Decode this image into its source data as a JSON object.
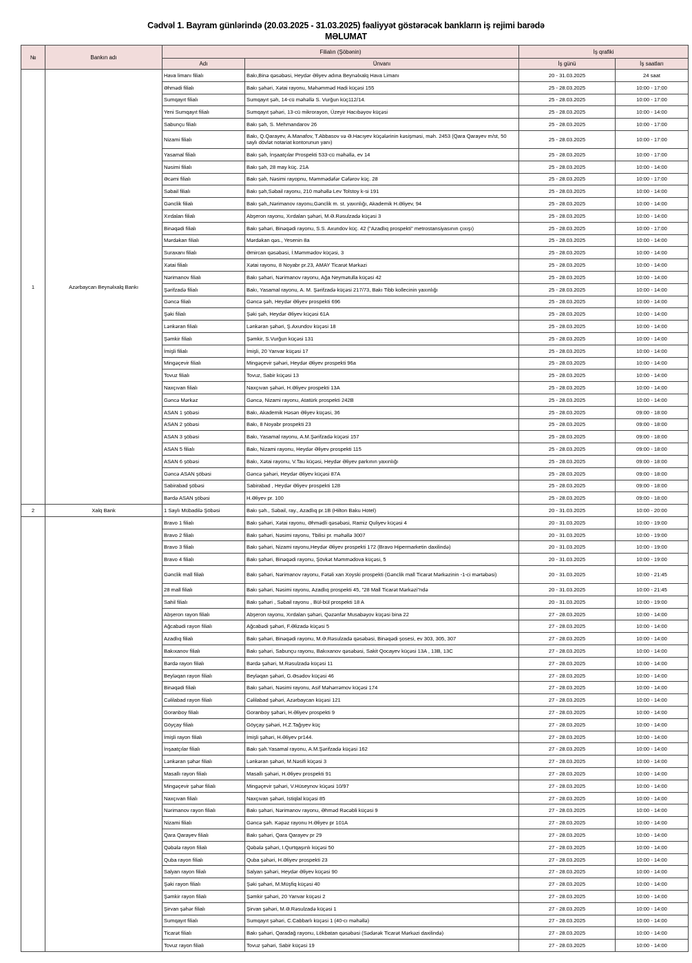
{
  "title_line1": "Cədvəl 1. Bayram günlərində (20.03.2025 - 31.03.2025) fəaliyyət göstərəcək bankların iş rejimi barədə",
  "title_line2": "MƏLUMAT",
  "headers": {
    "num": "№",
    "bank": "Bankın adı",
    "branch_group": "Filialın (Şöbənin)",
    "schedule_group": "İş qrafiki",
    "name": "Adı",
    "address": "Ünvanı",
    "days": "İş günü",
    "hours": "İş saatları"
  },
  "header_color": "#f2dcdb",
  "groups": [
    {
      "num": "1",
      "bank": "Azərbaycan Beynəlxalq Bankı",
      "rows": [
        {
          "name": "Hava limanı filialı",
          "address": "Bakı,Binə qəsəbəsi, Heydər Əliyev adına Beynəlxalq Hava Limanı",
          "days": "20 - 31.03.2025",
          "hours": "24 saat"
        },
        {
          "name": "Əhmədi filialı",
          "address": "Bakı şəhəri, Xətai rayonu, Məhəmməd Hadi küçəsi 155",
          "days": "25 - 28.03.2025",
          "hours": "10:00 - 17:00"
        },
        {
          "name": "Sumqayıt filialı",
          "address": "Sumqayıt şəh, 14-cü məhəllə  S. Vurğun küç112/14.",
          "days": "25 - 28.03.2025",
          "hours": "10:00 - 17:00"
        },
        {
          "name": "Yeni Sumqayıt filialı",
          "address": "Sumqayıt şəhəri, 13-cü mikrorayon, Üzeyir Hacıbəyov küçəsi",
          "days": "25 - 28.03.2025",
          "hours": "10:00 - 14:00"
        },
        {
          "name": "Sabunçu filialı",
          "address": "Bakı şəh, S. Mehmandarov 26",
          "days": "25 - 28.03.2025",
          "hours": "10:00 - 17:00"
        },
        {
          "name": "Nizami filialı",
          "address": "Bakı, Q.Qarayev, A.Manafov, T.Abbasov və Ə.Hacıyev küçələrinin kəsişməsi, məh. 2453 (Qara Qarayev m/st, 50 saylı dövlət notariat kontorunun yanı)",
          "days": "25 - 28.03.2025",
          "hours": "10:00 - 17:00",
          "tall": true
        },
        {
          "name": "Yasamal filialı",
          "address": "Bakı şəh, İnşaatçılar Prospekti 533-cü məhəllə, ev 14",
          "days": "25 - 28.03.2025",
          "hours": "10:00 - 17:00"
        },
        {
          "name": "Nəsimi filialı",
          "address": "Bakı şəh, 28 may küç.  21A",
          "days": "25 - 28.03.2025",
          "hours": "10:00 - 14:00"
        },
        {
          "name": "Əcəmi filialı",
          "address": "Bakı şəh, Nəsimi rayopnu, Məmmədəfər Cəfərov küç. 28",
          "days": "25 - 28.03.2025",
          "hours": "10:00 - 17:00"
        },
        {
          "name": "Səbail filialı",
          "address": "Bakı şəh,Səbail rayonu, 210 məhəllə Lev Tolstoy k-si 191",
          "days": "25 - 28.03.2025",
          "hours": "10:00 - 14:00"
        },
        {
          "name": "Gənclik filialı",
          "address": "Bakı şəh,,Nərimanov rayonu,Gənclik m. st. yaxınlığı, Akademik H.Əliyev, 94",
          "days": "25 - 28.03.2025",
          "hours": "10:00 - 14:00"
        },
        {
          "name": "Xırdalan filialı",
          "address": "Abşeron rayonu, Xırdalan şəhəri, M.Ə.Rəsulzadə küçəsi 3",
          "days": "25 - 28.03.2025",
          "hours": "10:00 - 14:00"
        },
        {
          "name": "Binəqədi filialı",
          "address": "Bakı şəhəri, Binəqədi rayonu, S.S. Axundov küç. 42 (\"Azadlıq prospekti\" metrostansiyasının çıxışı)",
          "days": "25 - 28.03.2025",
          "hours": "10:00 - 17:00"
        },
        {
          "name": "Mərdəkan filialı",
          "address": "Mərdəkan qəs., Yesenin 8a",
          "days": "25 - 28.03.2025",
          "hours": "10:00 - 14:00"
        },
        {
          "name": "Suraxanı filialı",
          "address": "Əmircan qəsəbəsi, İ.Məmmədov küçəsi, 3",
          "days": "25 - 28.03.2025",
          "hours": "10:00 - 14:00"
        },
        {
          "name": "Xətai filialı",
          "address": "Xətai rayonu, 8 Noyabr pr.23, AMAY Ticarət Mərkəzi",
          "days": "25 - 28.03.2025",
          "hours": "10:00 - 14:00"
        },
        {
          "name": "Nərimanov filialı",
          "address": "Bakı şəhəri, Nərimanov rayonu, Ağa Neymətulla küçəsi 42",
          "days": "25 - 28.03.2025",
          "hours": "10:00 - 14:00"
        },
        {
          "name": "Şərifzadə filialı",
          "address": "Bakı, Yasamal rayonu, A. M. Şərifzadə küçəsi 217/73, Bakı Tibb kollecinin yaxınlığı",
          "days": "25 - 28.03.2025",
          "hours": "10:00 - 14:00"
        },
        {
          "name": "Gəncə filialı",
          "address": "Gəncə şəh, Heydər Əliyev prospekti 696",
          "days": "25 - 28.03.2025",
          "hours": "10:00 - 14:00"
        },
        {
          "name": "Şəki filialı",
          "address": "Şəki şəh, Heydər Əliyev küçəsi 61A",
          "days": "25 - 28.03.2025",
          "hours": "10:00 - 14:00"
        },
        {
          "name": "Lənkəran filialı",
          "address": "Lənkəran şəhəri, Ş.Axundov küçəsi 18",
          "days": "25 - 28.03.2025",
          "hours": "10:00 - 14:00"
        },
        {
          "name": "Şəmkir filialı",
          "address": "Şəmkir, S.Vurğun küçəsi 131",
          "days": "25 - 28.03.2025",
          "hours": "10:00 - 14:00"
        },
        {
          "name": "İmişli filialı",
          "address": "İmişli, 20 Yanvar küçəsi 17",
          "days": "25 - 28.03.2025",
          "hours": "10:00 - 14:00"
        },
        {
          "name": "Mingəçevir filialı",
          "address": "Mingəçevir şəhəri, Heydər Əliyev prospekti 96a",
          "days": "25 - 28.03.2025",
          "hours": "10:00 - 14:00"
        },
        {
          "name": "Tovuz filialı",
          "address": "Tovuz, Sabir küçəsi 13",
          "days": "25 - 28.03.2025",
          "hours": "10:00 - 14:00"
        },
        {
          "name": "Naxçıvan filialı",
          "address": "Naxçıvan şəhəri, H.Əliyev prospekti 13A",
          "days": "25 - 28.03.2025",
          "hours": "10:00 - 14:00"
        },
        {
          "name": "Gəncə Mərkəz",
          "address": "Gəncə, Nizami rayonu, Atatürk prospekti 242B",
          "days": "25 - 28.03.2025",
          "hours": "10:00 - 14:00"
        },
        {
          "name": "ASAN 1 şöbəsi",
          "address": "Bakı, Akademik Həsən Əliyev küçəsi, 36",
          "days": "25 - 28.03.2025",
          "hours": "09:00 - 18:00"
        },
        {
          "name": "ASAN 2 şöbəsi",
          "address": "Bakı, 8 Noyabr prospekti 23",
          "days": "25 - 28.03.2025",
          "hours": "09:00 - 18:00"
        },
        {
          "name": "ASAN 3 şöbəsi",
          "address": "Bakı, Yasamal rayonu, A.M.Şərifzadə küçəsi 157",
          "days": "25 - 28.03.2025",
          "hours": "09:00 - 18:00"
        },
        {
          "name": "ASAN 5 filialı",
          "address": "Bakı, Nizami rayonu, Heydər Əliyev prospekti 115",
          "days": "25 - 28.03.2025",
          "hours": "09:00 - 18:00"
        },
        {
          "name": "ASAN 6 şöbəsi",
          "address": "Bakı, Xətai rayonu, V.Tau küçəsi, Heydər Əliyev parkının yaxınlığı",
          "days": "25 - 28.03.2025",
          "hours": "09:00 - 18:00"
        },
        {
          "name": "Gəncə ASAN şöbəsi",
          "address": "Gəncə şəhəri, Heydər Əliyev küçəsi 87A",
          "days": "25 - 28.03.2025",
          "hours": "09:00 - 18:00"
        },
        {
          "name": "Sabirabad şöbəsi",
          "address": "Sabirabad , Heydər Əliyev prospekti 128",
          "days": "25 - 28.03.2025",
          "hours": "09:00 - 18:00"
        },
        {
          "name": "Bərdə ASAN şöbəsi",
          "address": "H.Əliyev pr. 100",
          "days": "25 - 28.03.2025",
          "hours": "09:00 - 18:00"
        }
      ]
    },
    {
      "num": "2",
      "bank": "Xalq Bank",
      "rows": [
        {
          "name": "1 Saylı Mübadilə Şöbəsi",
          "address": "Bakı şəh., Səbail, ray., Azadlıq pr.1B (Hilton Baku Hotel)",
          "days": "20 - 31.03.2025",
          "hours": "10:00 - 20:00"
        }
      ]
    },
    {
      "num": "",
      "bank": "",
      "rows": [
        {
          "name": "Bravo 1 filialı",
          "address": "Bakı şəhəri, Xətai rayonu, Əhmədli qəsəbəsi, Ramiz Quliyev küçəsi 4",
          "days": "20 - 31.03.2025",
          "hours": "10:00 - 19:00"
        },
        {
          "name": "Bravo 2 filialı",
          "address": "Bakı şəhəri, Nəsimi rayonu, Tbilisi pr. məhəllə 3007",
          "days": "20 - 31.03.2025",
          "hours": "10:00 - 19:00"
        },
        {
          "name": "Bravo 3 filialı",
          "address": "Bakı şəhəri, Nizami rayonu,Heydər Əliyev prospekti 172 (Bravo Hipermarketin daxilində)",
          "days": "20 - 31.03.2025",
          "hours": "10:00 - 19:00"
        },
        {
          "name": "Bravo 4 filialı",
          "address": "Bakı şəhəri, Binəqədi rayonu, Şövkət Məmmədova küçəsi, 5",
          "days": "20 - 31.03.2025",
          "hours": "10:00 - 19:00"
        },
        {
          "name": "Gənclik mall filialı",
          "address": "Bakı şəhəri, Nərimanov rayonu, Fətəli xan Xoyski prospekti (Gənclik mall Ticarət Mərkəzinin -1-ci mərtəbəsi)",
          "days": "20 - 31.03.2025",
          "hours": "10:00 - 21:45",
          "tall": true
        },
        {
          "name": "28 mall filialı",
          "address": "Bakı şəhəri, Nəsimi rayonu, Azadlıq prospekti 45, \"28 Mall Ticarət Mərkəzi\"ndə",
          "days": "20 - 31.03.2025",
          "hours": "10:00 - 21:45"
        },
        {
          "name": "Sahil filialı",
          "address": "Bakı şəhəri , Səbail rayonu , Bül-bül prospekti 18 A",
          "days": "20 - 31.03.2025",
          "hours": "10:00 - 19:00"
        },
        {
          "name": "Abşeron rayon filialı",
          "address": "Abşeron rayonu, Xırdalan şəhəri, Qəzənfər Musabəyov küçəsi bina 22",
          "days": "27 - 28.03.2025",
          "hours": "10:00 - 14:00"
        },
        {
          "name": "Ağcabədi rayon filialı",
          "address": "Ağcabədi şəhəri, F.Əlizadə küçəsi 5",
          "days": "27 - 28.03.2025",
          "hours": "10:00 - 14:00"
        },
        {
          "name": "Azadlıq filialı",
          "address": "Bakı şəhəri, Binəqədi rayonu, M.Ə.Rəsulzadə qəsəbəsi, Binəqədi şosesi, ev 303, 305, 307",
          "days": "27 - 28.03.2025",
          "hours": "10:00 - 14:00"
        },
        {
          "name": "Bakıxanov filialı",
          "address": "Bakı şəhəri,  Sabunçu rayonu, Bakıxanov qəsəbəsi, Sakit Qocayev küçəsi 13A , 13B, 13C",
          "days": "27 - 28.03.2025",
          "hours": "10:00 - 14:00"
        },
        {
          "name": "Bərdə rayon filialı",
          "address": "Bərdə şəhəri, M.Rəsulzadə küçəsi 11",
          "days": "27 - 28.03.2025",
          "hours": "10:00 - 14:00"
        },
        {
          "name": "Beyləqan rayon filialı",
          "address": "Beyləqan şəhəri, G.Əsədov küçəsi 46",
          "days": "27 - 28.03.2025",
          "hours": "10:00 - 14:00"
        },
        {
          "name": "Binəqədi filialı",
          "address": "Bakı şəhəri, Nəsimi rayonu, Asif Məhərrəmov küçəsi 174",
          "days": "27 - 28.03.2025",
          "hours": "10:00 - 14:00"
        },
        {
          "name": "Cəlilabad rayon filialı",
          "address": "Cəlilabad şəhəri, Azərbaycan küçəsi 121",
          "days": "27 - 28.03.2025",
          "hours": "10:00 - 14:00"
        },
        {
          "name": "Goranboy filialı",
          "address": "Goranboy şəhəri, H.Əliyev prospekti 9",
          "days": "27 - 28.03.2025",
          "hours": "10:00 - 14:00"
        },
        {
          "name": "Göyçay filialı",
          "address": "Göyçay şəhəri, H.Z.Tağıyev küç",
          "days": "27 - 28.03.2025",
          "hours": "10:00 - 14:00"
        },
        {
          "name": "İmişli rayon filialı",
          "address": "İmişli şəhəri, H.Əliyev pr144.",
          "days": "27 - 28.03.2025",
          "hours": "10:00 - 14:00"
        },
        {
          "name": "İnşaatçılar filialı",
          "address": "Bakı şəh.Yasamal rayonu, A.M.Şərifzadə küçəsi 162",
          "days": "27 - 28.03.2025",
          "hours": "10:00 - 14:00"
        },
        {
          "name": "Lənkəran şəhər filialı",
          "address": "Lənkəran şəhəri, M.Nəsifi küçəsi 3",
          "days": "27 - 28.03.2025",
          "hours": "10:00 - 14:00"
        },
        {
          "name": "Masallı rayon filialı",
          "address": "Masallı şəhəri,  H.Əliyev prospekti 91",
          "days": "27 - 28.03.2025",
          "hours": "10:00 - 14:00"
        },
        {
          "name": "Mingəçevir şəhər filialı",
          "address": "Mingəçevir şəhəri, V.Hüseynov küçəsi 10/97",
          "days": "27 - 28.03.2025",
          "hours": "10:00 - 14:00"
        },
        {
          "name": "Naxçıvan filialı",
          "address": "Naxçıvan şəhəri,  Istiqlal küçəsi 85",
          "days": "27 - 28.03.2025",
          "hours": "10:00 - 14:00"
        },
        {
          "name": "Nərimanov rayon filialı",
          "address": "Bakı şəhəri, Nərimanov rayonu, Əhməd Rəcəbli küçəsi 9",
          "days": "27 - 28.03.2025",
          "hours": "10:00 - 14:00"
        },
        {
          "name": "Nizami filialı",
          "address": "Gəncə şəh. Kəpəz rayonu H.Əliyev pr 101A",
          "days": "27 - 28.03.2025",
          "hours": "10:00 - 14:00"
        },
        {
          "name": "Qara Qarayev filialı",
          "address": "Bakı şəhəri, Qara Qarayev pr 29",
          "days": "27 - 28.03.2025",
          "hours": "10:00 - 14:00"
        },
        {
          "name": "Qəbələ rayon filialı",
          "address": "Qəbələ şəhəri, I.Qurtqaşınlı küçəsi 50",
          "days": "27 - 28.03.2025",
          "hours": "10:00 - 14:00"
        },
        {
          "name": "Quba rayon filialı",
          "address": "Quba şəhəri, H.Əliyev prospekti 23",
          "days": "27 - 28.03.2025",
          "hours": "10:00 - 14:00"
        },
        {
          "name": "Salyan rayon filialı",
          "address": "Salyan şəhəri,  Heydər Əliyev küçəsi 90",
          "days": "27 - 28.03.2025",
          "hours": "10:00 - 14:00"
        },
        {
          "name": "Şəki rayon filialı",
          "address": "Şəki şəhəri, M.Müşfiq küçəsi 40",
          "days": "27 - 28.03.2025",
          "hours": "10:00 - 14:00"
        },
        {
          "name": "Şəmkir rayon filialı",
          "address": "Şəmkir şəhəri, 20 Yanvar küçəsi 2",
          "days": "27 - 28.03.2025",
          "hours": "10:00 - 14:00"
        },
        {
          "name": "Şirvan şəhər filialı",
          "address": "Şirvan şəhəri,  M.Ə.Rəsulzadə küçəsi 1",
          "days": "27 - 28.03.2025",
          "hours": "10:00 - 14:00"
        },
        {
          "name": "Sumqayıt filialı",
          "address": "Sumqayıt şəhəri,  C.Cabbarlı küçəsi 1 (40-cı məhəllə)",
          "days": "27 - 28.03.2025",
          "hours": "10:00 - 14:00"
        },
        {
          "name": "Ticarət filialı",
          "address": "Bakı şəhəri, Qaradağ rayonu, Lökbatan qəsəbəsi (Sədərək Ticarət Mərkəzi daxilində)",
          "days": "27 - 28.03.2025",
          "hours": "10:00 - 14:00"
        },
        {
          "name": "Tovuz rayon filialı",
          "address": "Tovuz şəhəri, Sabir küçəsi 19",
          "days": "27 - 28.03.2025",
          "hours": "10:00 - 14:00"
        }
      ]
    }
  ]
}
